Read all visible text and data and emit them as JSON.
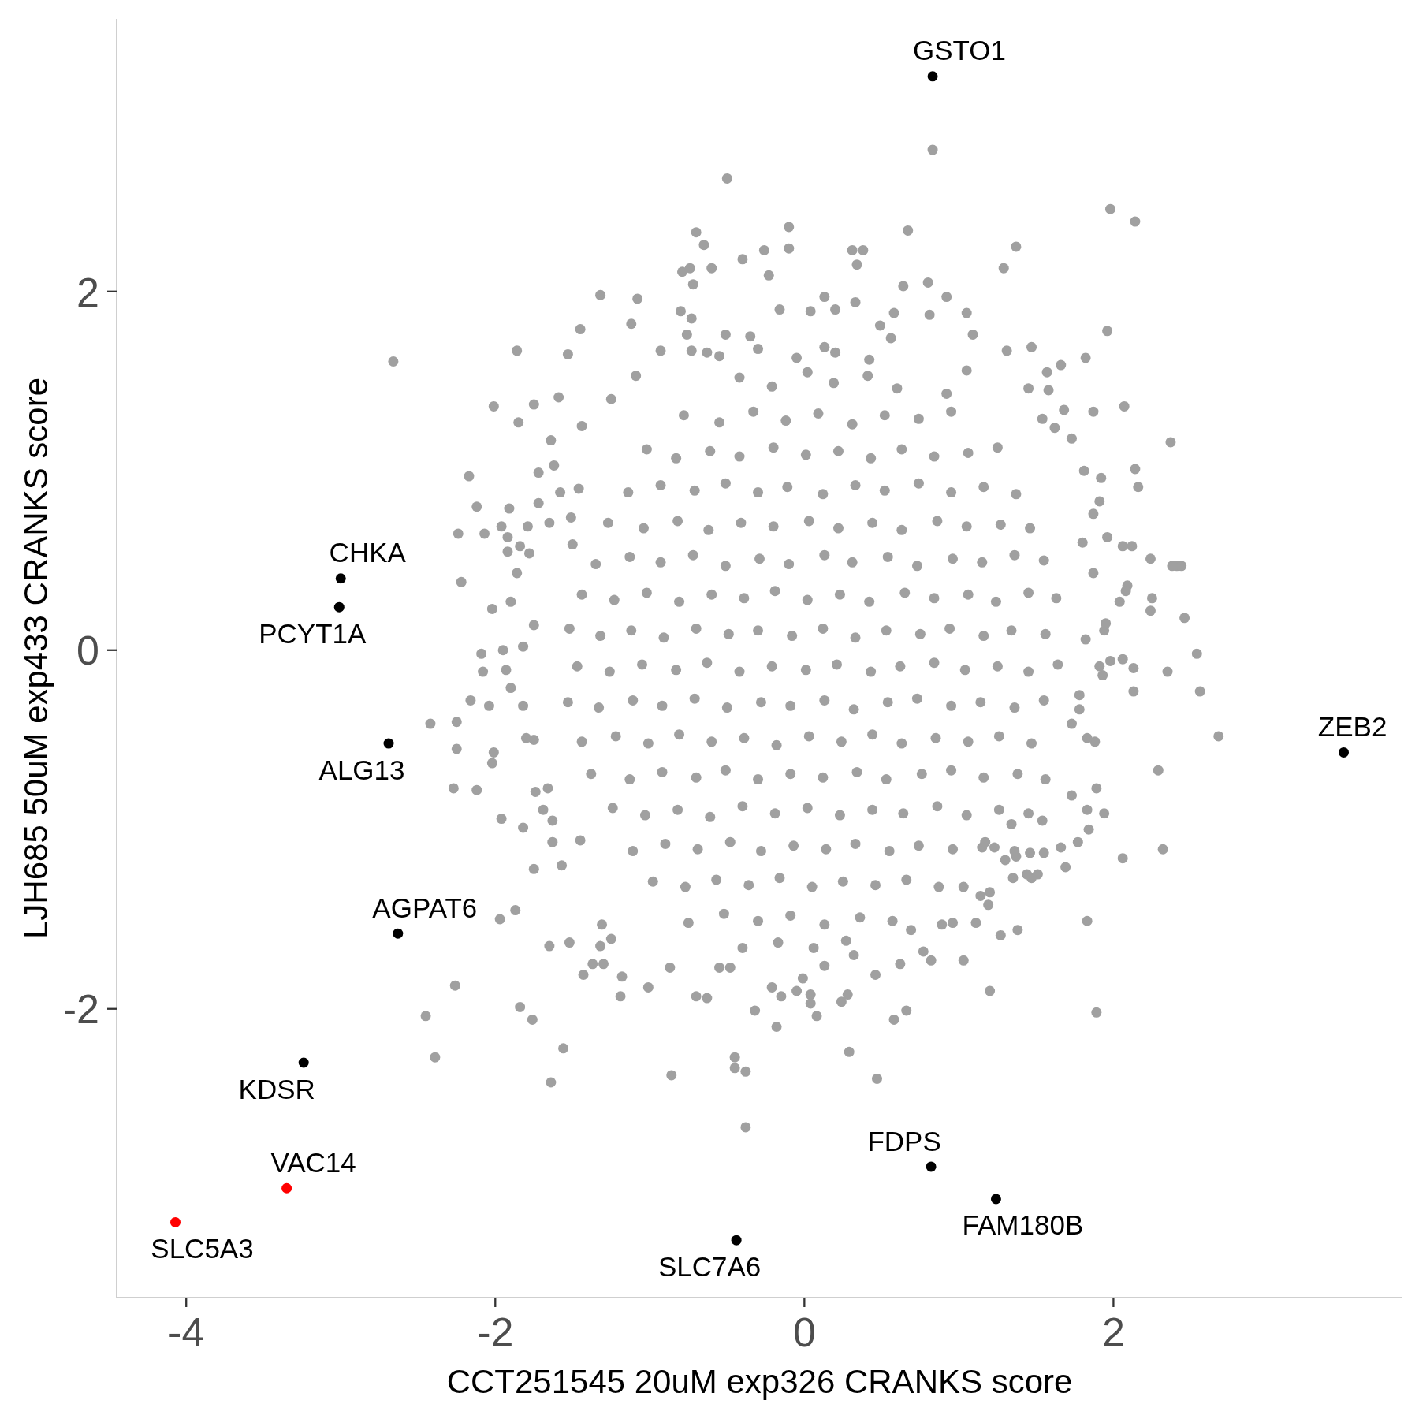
{
  "chart_data": {
    "type": "scatter",
    "xlabel": "CCT251545 20uM exp326 CRANKS score",
    "ylabel": "LJH685 50uM exp433 CRANKS score",
    "xlim": [
      -4.45,
      3.87
    ],
    "ylim": [
      -3.61,
      3.52
    ],
    "xticks": [
      -4,
      -2,
      0,
      2
    ],
    "yticks": [
      -2,
      0,
      2
    ],
    "marker": "circle",
    "series": [
      {
        "color": "#a0a0a0",
        "x": [
          0.83,
          -0.5,
          1.98,
          2.14,
          -0.7,
          -0.1,
          -0.65,
          -0.1,
          -0.26,
          -0.4,
          -0.79,
          -0.74,
          -0.6,
          -0.72,
          -0.23,
          0.31,
          0.38,
          0.34,
          0.67,
          1.37,
          1.29,
          0.8,
          0.92,
          0.64,
          0.13,
          0.33,
          0.04,
          0.2,
          -1.32,
          -1.08,
          -1.12,
          -1.45,
          -1.86,
          -2.66,
          -1.53,
          -2.01,
          -1.85,
          -1.75,
          -1.59,
          -1.44,
          1.05,
          1.09,
          1.31,
          1.47,
          1.96,
          1.82,
          1.66,
          1.57,
          1.58,
          1.45,
          2.07,
          1.87,
          1.68,
          2.37,
          1.73,
          1.62,
          1.54,
          0.81,
          0.58,
          -0.16,
          -0.35,
          -0.51,
          -0.8,
          -0.73,
          -0.76,
          -0.73,
          -0.63,
          -0.93,
          -1.09,
          -1.25,
          0.13,
          0.49,
          0.56,
          1.05,
          0.92,
          -2.17,
          -2.12,
          -1.91,
          -2.24,
          -2.07,
          -1.96,
          -2.22,
          -2.02,
          -2.09,
          -2.08,
          -1.95,
          -2.16,
          -2.04,
          -2.42,
          -2.25,
          -2.25,
          -2.27,
          -2.12,
          -1.96,
          -1.82,
          -2.01,
          -2.02,
          -1.82,
          -1.9,
          -1.93,
          -1.82,
          -1.75,
          -1.9,
          -1.86,
          -1.78,
          -1.79,
          -1.92,
          -1.92,
          -1.84,
          -1.72,
          -1.62,
          -1.58,
          -1.46,
          -1.64,
          -1.72,
          -1.74,
          -1.69,
          -1.63,
          -1.75,
          -1.57,
          -1.63,
          -1.45,
          -1.66,
          -1.75,
          -1.8,
          -1.51,
          -1.5,
          -1.65,
          -1.97,
          -1.87,
          -2.26,
          -2.45,
          -2.39,
          -1.84,
          -1.76,
          -1.56,
          -1.64,
          -1.65,
          -1.52,
          -1.43,
          -1.37,
          -1.3,
          -1.32,
          -1.25,
          -1.31,
          -1.18,
          -1.19,
          -1.01,
          -0.86,
          -0.87,
          -0.7,
          -0.63,
          -0.45,
          -0.45,
          -0.38,
          -0.38,
          -0.32,
          -0.18,
          -0.15,
          0.04,
          0.04,
          0.08,
          0.29,
          0.24,
          0.28,
          0.47,
          0.58,
          0.66,
          0.46,
          0.62,
          -0.05,
          -0.21,
          -0.01,
          -0.55,
          -0.48,
          0.13,
          0.32,
          0.77,
          0.82,
          0.89,
          0.96,
          2.68,
          2.56,
          2.54,
          2.35,
          2.46,
          2.24,
          2.25,
          2.14,
          2.16,
          2.24,
          2.38,
          2.41,
          2.44,
          2.06,
          2.12,
          1.96,
          2.09,
          2.08,
          2.04,
          2.13,
          2.13,
          2.06,
          2.29,
          2.32,
          2.06,
          1.94,
          1.84,
          1.94,
          1.95,
          1.91,
          1.87,
          1.8,
          1.87,
          1.82,
          1.93,
          1.91,
          1.98,
          1.88,
          1.83,
          1.89,
          1.83,
          1.73,
          1.69,
          1.66,
          1.77,
          1.81,
          1.92,
          1.78,
          1.78,
          1.73,
          1.83,
          1.89,
          1.2,
          1.03,
          1.27,
          1.38,
          1.11,
          1.19,
          1.14,
          1.2,
          1.03,
          1.35,
          1.47,
          1.51,
          1.44,
          1.55,
          1.46,
          1.54,
          1.34,
          1.3,
          1.37,
          1.15,
          1.23,
          0.69,
          -0.42,
          -0.21,
          0.02,
          0.19,
          0.41,
          0.6,
          -0.78,
          -0.55,
          -0.33,
          -0.12,
          0.09,
          0.31,
          0.52,
          0.74,
          0.95,
          -1.02,
          -0.83,
          -0.61,
          -0.42,
          -0.2,
          0.01,
          0.22,
          0.43,
          0.63,
          0.84,
          1.06,
          1.25,
          -1.14,
          -0.93,
          -0.71,
          -0.51,
          -0.3,
          -0.11,
          0.12,
          0.33,
          0.52,
          0.74,
          0.95,
          1.16,
          1.37,
          -1.27,
          -1.04,
          -0.82,
          -0.62,
          -0.41,
          -0.2,
          0.03,
          0.22,
          0.44,
          0.63,
          0.86,
          1.05,
          1.27,
          1.46,
          -1.35,
          -1.13,
          -0.93,
          -0.72,
          -0.51,
          -0.29,
          -0.1,
          0.13,
          0.31,
          0.54,
          0.73,
          0.96,
          1.15,
          1.36,
          1.55,
          -1.44,
          -1.23,
          -1.02,
          -0.81,
          -0.6,
          -0.39,
          -0.19,
          0.02,
          0.23,
          0.42,
          0.65,
          0.84,
          1.06,
          1.24,
          1.45,
          1.63,
          -1.52,
          -1.32,
          -1.12,
          -0.91,
          -0.7,
          -0.49,
          -0.3,
          -0.08,
          0.12,
          0.33,
          0.53,
          0.75,
          0.94,
          1.16,
          1.34,
          1.56,
          -1.47,
          -1.26,
          -1.05,
          -0.83,
          -0.63,
          -0.42,
          -0.21,
          0.01,
          0.21,
          0.43,
          0.62,
          0.84,
          1.04,
          1.25,
          1.45,
          1.64,
          -1.53,
          -1.33,
          -1.11,
          -0.92,
          -0.71,
          -0.5,
          -0.28,
          -0.09,
          0.13,
          0.32,
          0.54,
          0.73,
          0.95,
          1.14,
          1.36,
          1.55,
          -1.44,
          -1.22,
          -1.01,
          -0.81,
          -0.6,
          -0.39,
          -0.18,
          0.03,
          0.24,
          0.44,
          0.63,
          0.85,
          1.06,
          1.26,
          1.47,
          -1.38,
          -1.13,
          -0.92,
          -0.7,
          -0.51,
          -0.3,
          -0.09,
          0.12,
          0.34,
          0.53,
          0.76,
          0.95,
          1.16,
          1.38,
          1.56,
          -1.24,
          -1.03,
          -0.82,
          -0.61,
          -0.4,
          -0.19,
          0.02,
          0.23,
          0.44,
          0.64,
          0.86,
          1.05,
          1.26,
          1.45,
          -1.11,
          -0.9,
          -0.69,
          -0.48,
          -0.28,
          -0.07,
          0.14,
          0.33,
          0.55,
          0.74,
          0.96,
          1.17,
          1.36,
          -0.98,
          -0.77,
          -0.57,
          -0.36,
          -0.16,
          0.05,
          0.25,
          0.46,
          0.66,
          0.87,
          -0.75,
          -0.52,
          -0.3,
          -0.09,
          0.13,
          0.36,
          0.57,
          -0.4,
          -0.17,
          0.06,
          0.27,
          -0.55,
          -0.3,
          -0.05,
          0.2,
          0.42
        ],
        "values": [
          2.79,
          2.63,
          2.46,
          2.39,
          2.33,
          2.36,
          2.26,
          2.24,
          2.23,
          2.18,
          2.11,
          2.13,
          2.13,
          2.04,
          2.09,
          2.23,
          2.23,
          2.15,
          2.34,
          2.25,
          2.13,
          2.05,
          1.97,
          2.03,
          1.97,
          1.94,
          1.89,
          1.9,
          1.98,
          1.96,
          1.82,
          1.79,
          1.67,
          1.61,
          1.65,
          1.36,
          1.27,
          1.37,
          1.41,
          1.25,
          1.88,
          1.76,
          1.67,
          1.69,
          1.78,
          1.63,
          1.59,
          1.55,
          1.45,
          1.46,
          1.36,
          1.33,
          1.34,
          1.16,
          1.18,
          1.24,
          1.29,
          1.87,
          1.88,
          1.9,
          1.75,
          1.76,
          1.89,
          1.85,
          1.76,
          1.67,
          1.66,
          1.67,
          1.53,
          1.4,
          1.69,
          1.81,
          1.74,
          1.56,
          1.43,
          0.97,
          0.8,
          0.79,
          0.65,
          0.65,
          0.69,
          0.38,
          0.23,
          -0.02,
          -0.12,
          0,
          -0.28,
          -0.31,
          -0.41,
          -0.4,
          -0.55,
          -0.77,
          -0.78,
          -0.94,
          -0.99,
          -0.57,
          -0.63,
          -0.31,
          -0.21,
          -0.11,
          0.02,
          0.14,
          0.27,
          0.43,
          0.54,
          0.69,
          0.63,
          0.55,
          0.58,
          0.82,
          1.03,
          0.88,
          0.9,
          1.17,
          0.99,
          -0.79,
          -0.89,
          -0.95,
          -1.22,
          -1.2,
          -1.07,
          -1.06,
          -0.77,
          -0.5,
          -0.49,
          0.74,
          0.59,
          0.71,
          -1.5,
          -1.45,
          -1.87,
          -2.04,
          -2.27,
          -1.99,
          -2.06,
          -2.22,
          -2.41,
          -1.65,
          -1.63,
          -1.81,
          -1.75,
          -1.75,
          -1.65,
          -1.61,
          -1.53,
          -1.82,
          -1.93,
          -1.88,
          -2.37,
          -1.77,
          -1.93,
          -1.94,
          -2.27,
          -2.33,
          -2.35,
          -2.66,
          -2.01,
          -2.1,
          -1.93,
          -1.92,
          -1.97,
          -2.04,
          -2.24,
          -1.96,
          -1.92,
          -2.39,
          -2.06,
          -2.01,
          -1.81,
          -1.75,
          -1.9,
          -1.88,
          -1.83,
          -1.77,
          -1.77,
          -1.76,
          -1.7,
          -1.68,
          -1.73,
          -1.53,
          -1.52,
          -0.48,
          -0.23,
          -0.02,
          -0.12,
          0.18,
          0.22,
          0.29,
          1.01,
          0.91,
          0.51,
          0.47,
          0.47,
          0.47,
          0.58,
          0.58,
          0.63,
          0.36,
          0.33,
          0.27,
          -0.1,
          -0.23,
          -0.05,
          -0.67,
          -1.11,
          -1.16,
          -0.91,
          -1,
          0.11,
          0.15,
          0.83,
          0.76,
          0.6,
          0.43,
          0.06,
          -0.14,
          -0.09,
          -0.06,
          -0.51,
          -0.49,
          -0.77,
          -0.89,
          -0.81,
          -1.21,
          -1.1,
          -1.07,
          1,
          0.96,
          -0.33,
          -0.25,
          -0.41,
          -1.51,
          -2.02,
          -1.9,
          -1.73,
          -1.59,
          -1.56,
          -1.52,
          -1.42,
          -1.37,
          -1.35,
          -1.32,
          -1.27,
          -1.27,
          -1.25,
          -1.25,
          -1.13,
          -1.13,
          -0.95,
          -0.97,
          -1.17,
          -1.15,
          -1.1,
          -1.1,
          -1.56,
          1.52,
          1.47,
          1.55,
          1.49,
          1.53,
          1.46,
          1.31,
          1.27,
          1.33,
          1.28,
          1.32,
          1.26,
          1.31,
          1.29,
          1.33,
          1.12,
          1.07,
          1.11,
          1.08,
          1.13,
          1.09,
          1.11,
          1.07,
          1.12,
          1.08,
          1.1,
          1.13,
          0.88,
          0.92,
          0.89,
          0.93,
          0.88,
          0.91,
          0.87,
          0.92,
          0.89,
          0.93,
          0.88,
          0.91,
          0.87,
          0.71,
          0.68,
          0.72,
          0.67,
          0.71,
          0.69,
          0.72,
          0.68,
          0.71,
          0.67,
          0.72,
          0.69,
          0.7,
          0.68,
          0.48,
          0.52,
          0.49,
          0.53,
          0.47,
          0.51,
          0.48,
          0.53,
          0.49,
          0.52,
          0.47,
          0.51,
          0.49,
          0.53,
          0.5,
          0.31,
          0.28,
          0.32,
          0.27,
          0.31,
          0.29,
          0.33,
          0.28,
          0.31,
          0.27,
          0.32,
          0.29,
          0.31,
          0.27,
          0.32,
          0.29,
          0.12,
          0.08,
          0.11,
          0.07,
          0.12,
          0.09,
          0.11,
          0.08,
          0.12,
          0.07,
          0.11,
          0.09,
          0.12,
          0.08,
          0.11,
          0.09,
          -0.09,
          -0.12,
          -0.08,
          -0.11,
          -0.07,
          -0.12,
          -0.09,
          -0.11,
          -0.08,
          -0.12,
          -0.09,
          -0.07,
          -0.11,
          -0.09,
          -0.12,
          -0.08,
          -0.29,
          -0.32,
          -0.28,
          -0.31,
          -0.27,
          -0.32,
          -0.29,
          -0.31,
          -0.28,
          -0.33,
          -0.29,
          -0.27,
          -0.31,
          -0.29,
          -0.32,
          -0.28,
          -0.51,
          -0.48,
          -0.52,
          -0.47,
          -0.51,
          -0.49,
          -0.53,
          -0.48,
          -0.51,
          -0.47,
          -0.52,
          -0.49,
          -0.51,
          -0.48,
          -0.52,
          -0.69,
          -0.72,
          -0.68,
          -0.71,
          -0.67,
          -0.72,
          -0.69,
          -0.71,
          -0.68,
          -0.72,
          -0.69,
          -0.67,
          -0.71,
          -0.69,
          -0.72,
          -0.88,
          -0.92,
          -0.89,
          -0.93,
          -0.87,
          -0.91,
          -0.88,
          -0.92,
          -0.89,
          -0.91,
          -0.87,
          -0.92,
          -0.89,
          -0.91,
          -1.12,
          -1.08,
          -1.11,
          -1.07,
          -1.12,
          -1.09,
          -1.11,
          -1.08,
          -1.12,
          -1.09,
          -1.11,
          -1.07,
          -1.12,
          -1.29,
          -1.32,
          -1.28,
          -1.31,
          -1.27,
          -1.32,
          -1.29,
          -1.31,
          -1.28,
          -1.32,
          -1.52,
          -1.47,
          -1.51,
          -1.48,
          -1.53,
          -1.49,
          -1.51,
          -1.66,
          -1.63,
          -1.66,
          -1.62,
          1.64,
          1.68,
          1.63,
          1.66,
          1.62
        ]
      },
      {
        "color": "#000000",
        "x": [
          0.83,
          -3.0,
          -3.01,
          -2.69,
          -2.63,
          -3.24,
          -0.44,
          0.82,
          1.24,
          3.49
        ],
        "values": [
          3.2,
          0.4,
          0.24,
          -0.52,
          -1.58,
          -2.3,
          -3.29,
          -2.88,
          -3.06,
          -0.57
        ]
      },
      {
        "color": "#ff0000",
        "x": [
          -3.35,
          -4.07
        ],
        "values": [
          -3.0,
          -3.19
        ]
      }
    ],
    "annotations": [
      {
        "text": "GSTO1",
        "x": 0.83,
        "y": 3.2
      },
      {
        "text": "CHKA",
        "x": -3.0,
        "y": 0.4
      },
      {
        "text": "PCYT1A",
        "x": -3.01,
        "y": 0.24
      },
      {
        "text": "ALG13",
        "x": -2.69,
        "y": -0.52
      },
      {
        "text": "AGPAT6",
        "x": -2.63,
        "y": -1.58
      },
      {
        "text": "KDSR",
        "x": -3.24,
        "y": -2.3
      },
      {
        "text": "VAC14",
        "x": -3.35,
        "y": -3.0
      },
      {
        "text": "SLC5A3",
        "x": -4.07,
        "y": -3.19
      },
      {
        "text": "SLC7A6",
        "x": -0.44,
        "y": -3.29
      },
      {
        "text": "FDPS",
        "x": 0.82,
        "y": -2.88
      },
      {
        "text": "FAM180B",
        "x": 1.24,
        "y": -3.06
      },
      {
        "text": "ZEB2",
        "x": 3.49,
        "y": -0.57
      }
    ]
  }
}
